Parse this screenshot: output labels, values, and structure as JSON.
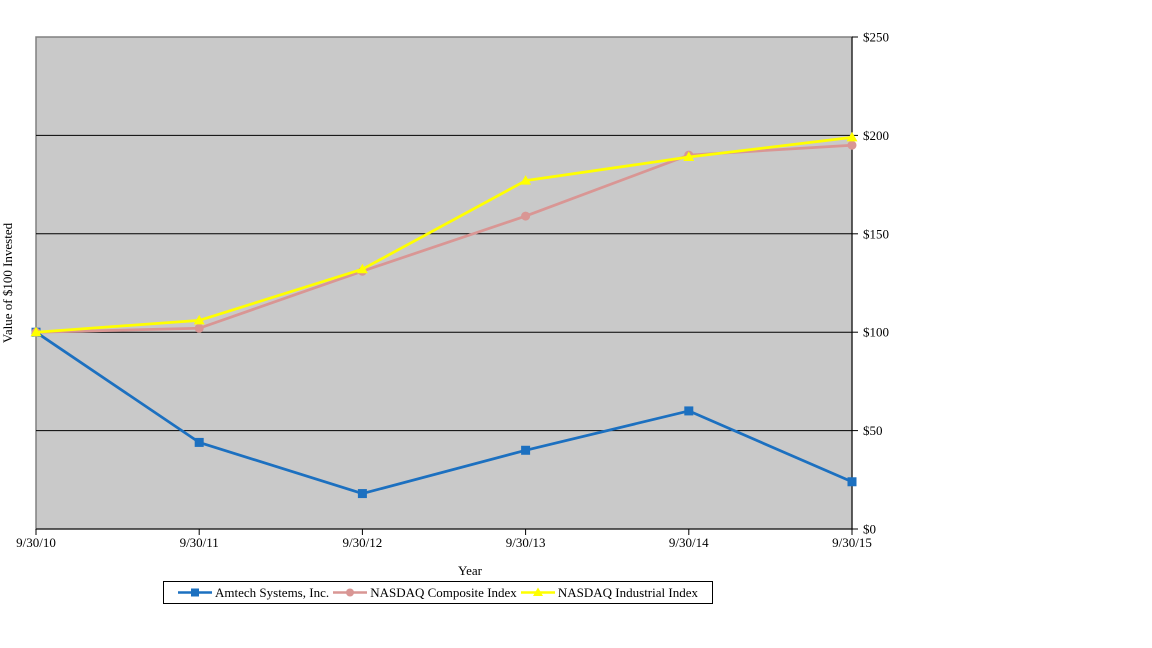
{
  "chart_data": {
    "type": "line",
    "title": "",
    "categories": [
      "9/30/10",
      "9/30/11",
      "9/30/12",
      "9/30/13",
      "9/30/14",
      "9/30/15"
    ],
    "series": [
      {
        "name": "Amtech Systems, Inc.",
        "marker": "square",
        "color": "#1C70C0",
        "values": [
          100,
          44,
          18,
          40,
          60,
          24
        ]
      },
      {
        "name": "NASDAQ Composite Index",
        "marker": "circle",
        "color": "#D99694",
        "values": [
          100,
          102,
          131,
          159,
          190,
          195
        ]
      },
      {
        "name": "NASDAQ Industrial Index",
        "marker": "triangle",
        "color": "#FFFF00",
        "values": [
          100,
          106,
          132,
          177,
          189,
          199
        ]
      }
    ],
    "xlabel": "Year",
    "ylabel": "Value of $100 Invested",
    "ylim": [
      0,
      250
    ],
    "ytick_step": 50,
    "ytick_labels": [
      "$0",
      "$50",
      "$100",
      "$150",
      "$200",
      "$250"
    ],
    "yaxis_side": "right",
    "grid": "horizontal",
    "legend_position": "bottom",
    "styles": {
      "plot_bg": "#C9C9C9",
      "plot_border": "#808080",
      "gridline": "#000000",
      "axis": "#000000",
      "background": "#FFFFFF"
    }
  }
}
